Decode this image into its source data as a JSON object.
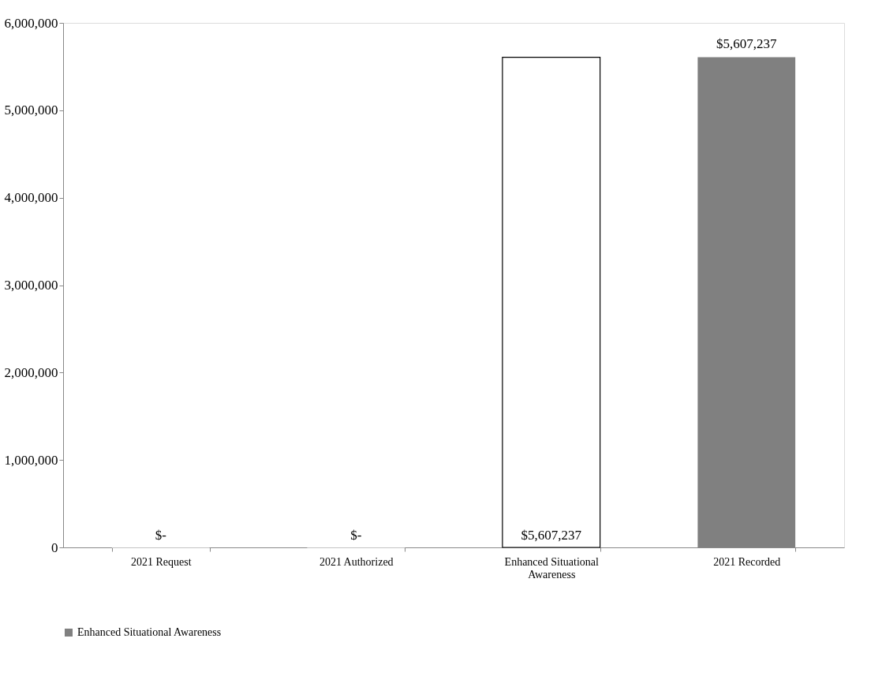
{
  "chart_data": {
    "type": "bar",
    "categories": [
      "2021 Request",
      "2021 Authorized",
      "Enhanced Situational Awareness",
      "2021 Recorded"
    ],
    "series": [
      {
        "name": "Enhanced Situational Awareness",
        "color": "#808080",
        "colors": [
          "#ffffff",
          "#ffffff",
          "#ffffff",
          "#808080"
        ],
        "values": [
          0,
          0,
          5607237,
          5607237
        ]
      }
    ],
    "value_labels": [
      "$-",
      "$-",
      "$5,607,237",
      "$5,607,237"
    ],
    "ylim": [
      0,
      6000000
    ],
    "yticks": [
      0,
      {
        "value": 1000000,
        "label": "1,000,000"
      },
      {
        "value": 2000000,
        "label": "2,000,000"
      },
      {
        "value": 3000000,
        "label": "3,000,000"
      },
      {
        "value": 4000000,
        "label": "4,000,000"
      },
      {
        "value": 5000000,
        "label": "5,000,000"
      },
      {
        "value": 6000000,
        "label": "6,000,000"
      }
    ],
    "grid": false,
    "legend": "bottom"
  }
}
